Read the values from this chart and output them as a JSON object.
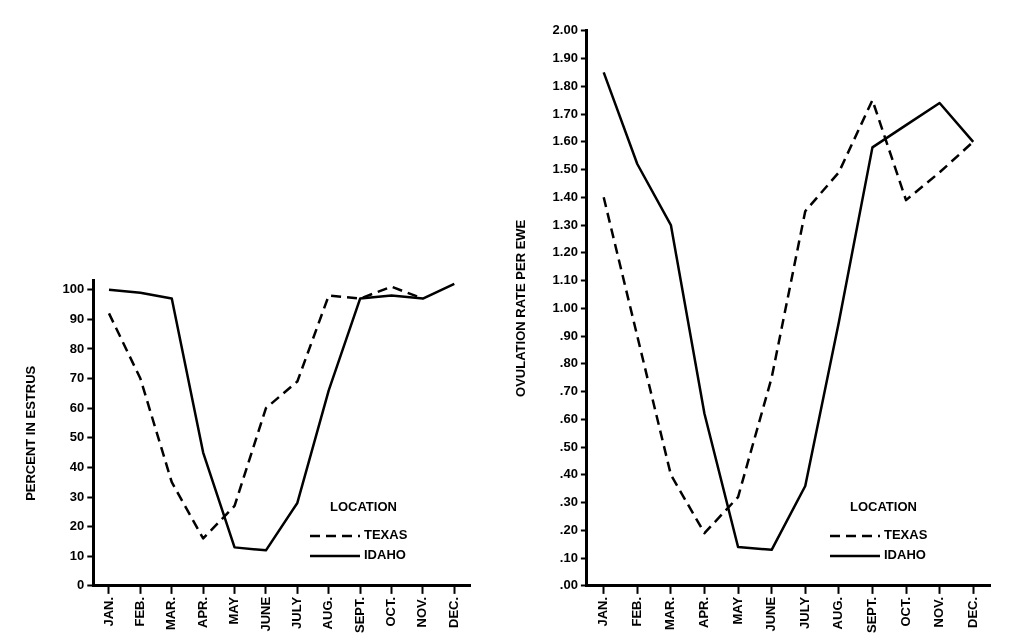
{
  "chart_data": [
    {
      "type": "line",
      "ylabel": "PERCENT IN ESTRUS",
      "categories": [
        "JAN.",
        "FEB.",
        "MAR.",
        "APR.",
        "MAY",
        "JUNE",
        "JULY",
        "AUG.",
        "SEPT.",
        "OCT.",
        "NOV.",
        "DEC."
      ],
      "series": [
        {
          "name": "TEXAS",
          "color": "#000000",
          "line_style": "dashed",
          "values": [
            92,
            70,
            35,
            16,
            27,
            60,
            69,
            98,
            97,
            101,
            97,
            null
          ]
        },
        {
          "name": "IDAHO",
          "color": "#000000",
          "line_style": "solid",
          "values": [
            100,
            99,
            97,
            45,
            13,
            12,
            28,
            66,
            97,
            98,
            97,
            102
          ]
        }
      ],
      "ylim": [
        0,
        103
      ],
      "yticks": [
        0,
        10,
        20,
        30,
        40,
        50,
        60,
        70,
        80,
        90,
        100
      ],
      "legend": "bottom right",
      "legend_title": "LOCATION",
      "marker": "none"
    },
    {
      "type": "line",
      "ylabel": "OVULATION RATE PER EWE",
      "categories": [
        "JAN.",
        "FEB.",
        "MAR.",
        "APR.",
        "MAY",
        "JUNE",
        "JULY",
        "AUG.",
        "SEPT.",
        "OCT.",
        "NOV.",
        "DEC."
      ],
      "series": [
        {
          "name": "TEXAS",
          "color": "#000000",
          "line_style": "dashed",
          "values": [
            1.4,
            0.9,
            0.4,
            0.19,
            0.32,
            0.75,
            1.35,
            1.49,
            1.75,
            1.39,
            1.49,
            1.6
          ]
        },
        {
          "name": "IDAHO",
          "color": "#000000",
          "line_style": "solid",
          "values": [
            1.85,
            1.52,
            1.3,
            0.62,
            0.14,
            0.13,
            0.36,
            0.95,
            1.58,
            1.66,
            1.74,
            1.6
          ]
        }
      ],
      "ylim": [
        0,
        2
      ],
      "yticks": [
        {
          "value": 0,
          "label": ".00"
        },
        {
          "value": 0.1,
          "label": ".10"
        },
        {
          "value": 0.2,
          "label": ".20"
        },
        {
          "value": 0.3,
          "label": ".30"
        },
        {
          "value": 0.4,
          "label": ".40"
        },
        {
          "value": 0.5,
          "label": ".50"
        },
        {
          "value": 0.6,
          "label": ".60"
        },
        {
          "value": 0.7,
          "label": ".70"
        },
        {
          "value": 0.8,
          "label": ".80"
        },
        {
          "value": 0.9,
          "label": ".90"
        },
        {
          "value": 1,
          "label": "1.00"
        },
        {
          "value": 1.1,
          "label": "1.10"
        },
        {
          "value": 1.2,
          "label": "1.20"
        },
        {
          "value": 1.3,
          "label": "1.30"
        },
        {
          "value": 1.4,
          "label": "1.40"
        },
        {
          "value": 1.5,
          "label": "1.50"
        },
        {
          "value": 1.6,
          "label": "1.60"
        },
        {
          "value": 1.7,
          "label": "1.70"
        },
        {
          "value": 1.8,
          "label": "1.80"
        },
        {
          "value": 1.9,
          "label": "1.90"
        },
        {
          "value": 2,
          "label": "2.00"
        }
      ],
      "legend": "bottom right",
      "legend_title": "LOCATION",
      "marker": "none"
    }
  ]
}
